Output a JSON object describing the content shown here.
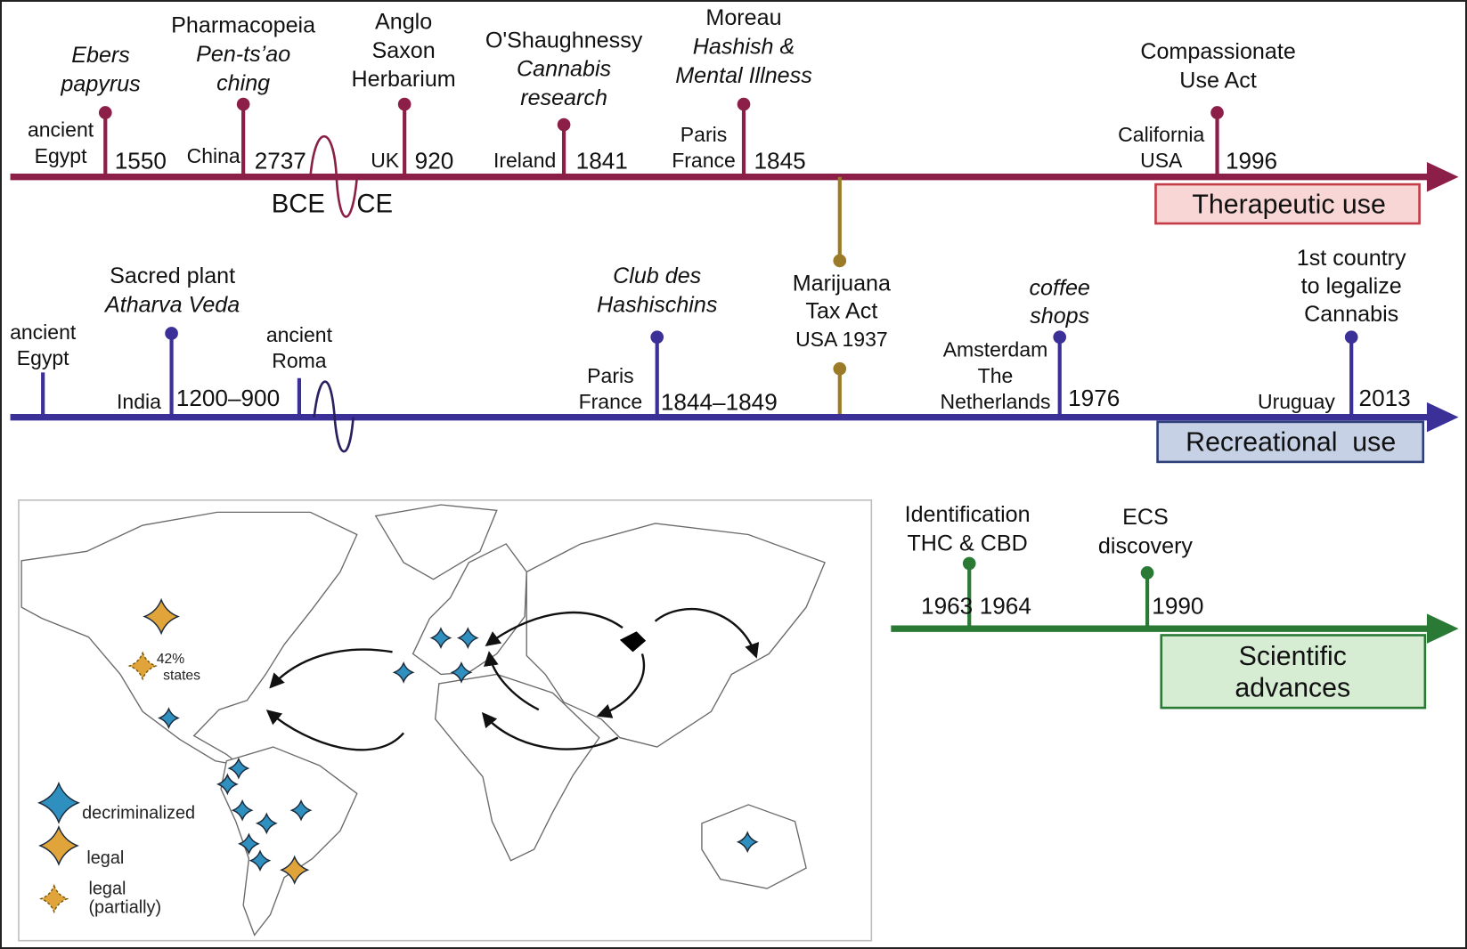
{
  "colors": {
    "therapeutic": "#8c1f47",
    "recreational": "#3b2f98",
    "scientific": "#2a7a36",
    "tax_act": "#9b7a28",
    "therapeutic_box": "#f8d6d6",
    "therapeutic_box_border": "#c43c48",
    "recreational_box": "#c6d1e6",
    "recreational_box_border": "#2e3f7a",
    "scientific_box": "#d6edd4",
    "scientific_box_border": "#2a7a36",
    "decriminalized": "#2f90c0",
    "legal": "#e0a43a"
  },
  "therapeutic": {
    "label": "Therapeutic use",
    "era_before": "BCE",
    "era_after": "CE",
    "events": [
      {
        "title": [
          "Ebers",
          "papyrus"
        ],
        "place": [
          "ancient",
          "Egypt"
        ],
        "year": "1550"
      },
      {
        "title": [
          "Pharmacopeia",
          "Pen-ts’ao",
          "ching"
        ],
        "place": [
          "China"
        ],
        "year": "2737"
      },
      {
        "title": [
          "Anglo",
          "Saxon",
          "Herbarium"
        ],
        "place": [
          "UK"
        ],
        "year": "920"
      },
      {
        "title": [
          "O'Shaughnessy",
          "Cannabis",
          "research"
        ],
        "place": [
          "Ireland"
        ],
        "year": "1841"
      },
      {
        "title": [
          "Moreau",
          "Hashish &",
          "Mental Illness"
        ],
        "place": [
          "Paris",
          "France"
        ],
        "year": "1845"
      },
      {
        "title": [
          "Compassionate",
          "Use Act"
        ],
        "place": [
          "California",
          "USA"
        ],
        "year": "1996"
      }
    ]
  },
  "tax_act": {
    "lines": [
      "Marijuana",
      "Tax Act",
      "USA 1937"
    ]
  },
  "recreational": {
    "label": "Recreational  use",
    "events": [
      {
        "title": [],
        "place": [
          "ancient",
          "Egypt"
        ],
        "year": ""
      },
      {
        "title": [
          "Sacred plant",
          "Atharva Veda"
        ],
        "place": [
          "India"
        ],
        "year": "1200–900"
      },
      {
        "title": [],
        "place": [
          "ancient",
          "Roma"
        ],
        "year": ""
      },
      {
        "title": [
          "Club des",
          "Hashischins"
        ],
        "place": [
          "Paris",
          "France"
        ],
        "year": "1844–1849"
      },
      {
        "title": [
          "coffee",
          "shops"
        ],
        "place": [
          "Amsterdam",
          "The",
          "Netherlands"
        ],
        "year": "1976"
      },
      {
        "title": [
          "1st country",
          "to legalize",
          "Cannabis"
        ],
        "place": [
          "Uruguay"
        ],
        "year": "2013"
      }
    ]
  },
  "scientific": {
    "label": [
      "Scientific",
      "advances"
    ],
    "events": [
      {
        "title": [
          "Identification",
          "THC & CBD"
        ],
        "year_left": "1963",
        "year": "1964"
      },
      {
        "title": [
          "ECS",
          "discovery"
        ],
        "year_left": "",
        "year": "1990"
      }
    ]
  },
  "map": {
    "annotation": [
      "42%",
      "states"
    ],
    "legend": {
      "decriminalized": "decriminalized",
      "legal": "legal",
      "partial": [
        "legal",
        "(partially)"
      ]
    }
  }
}
